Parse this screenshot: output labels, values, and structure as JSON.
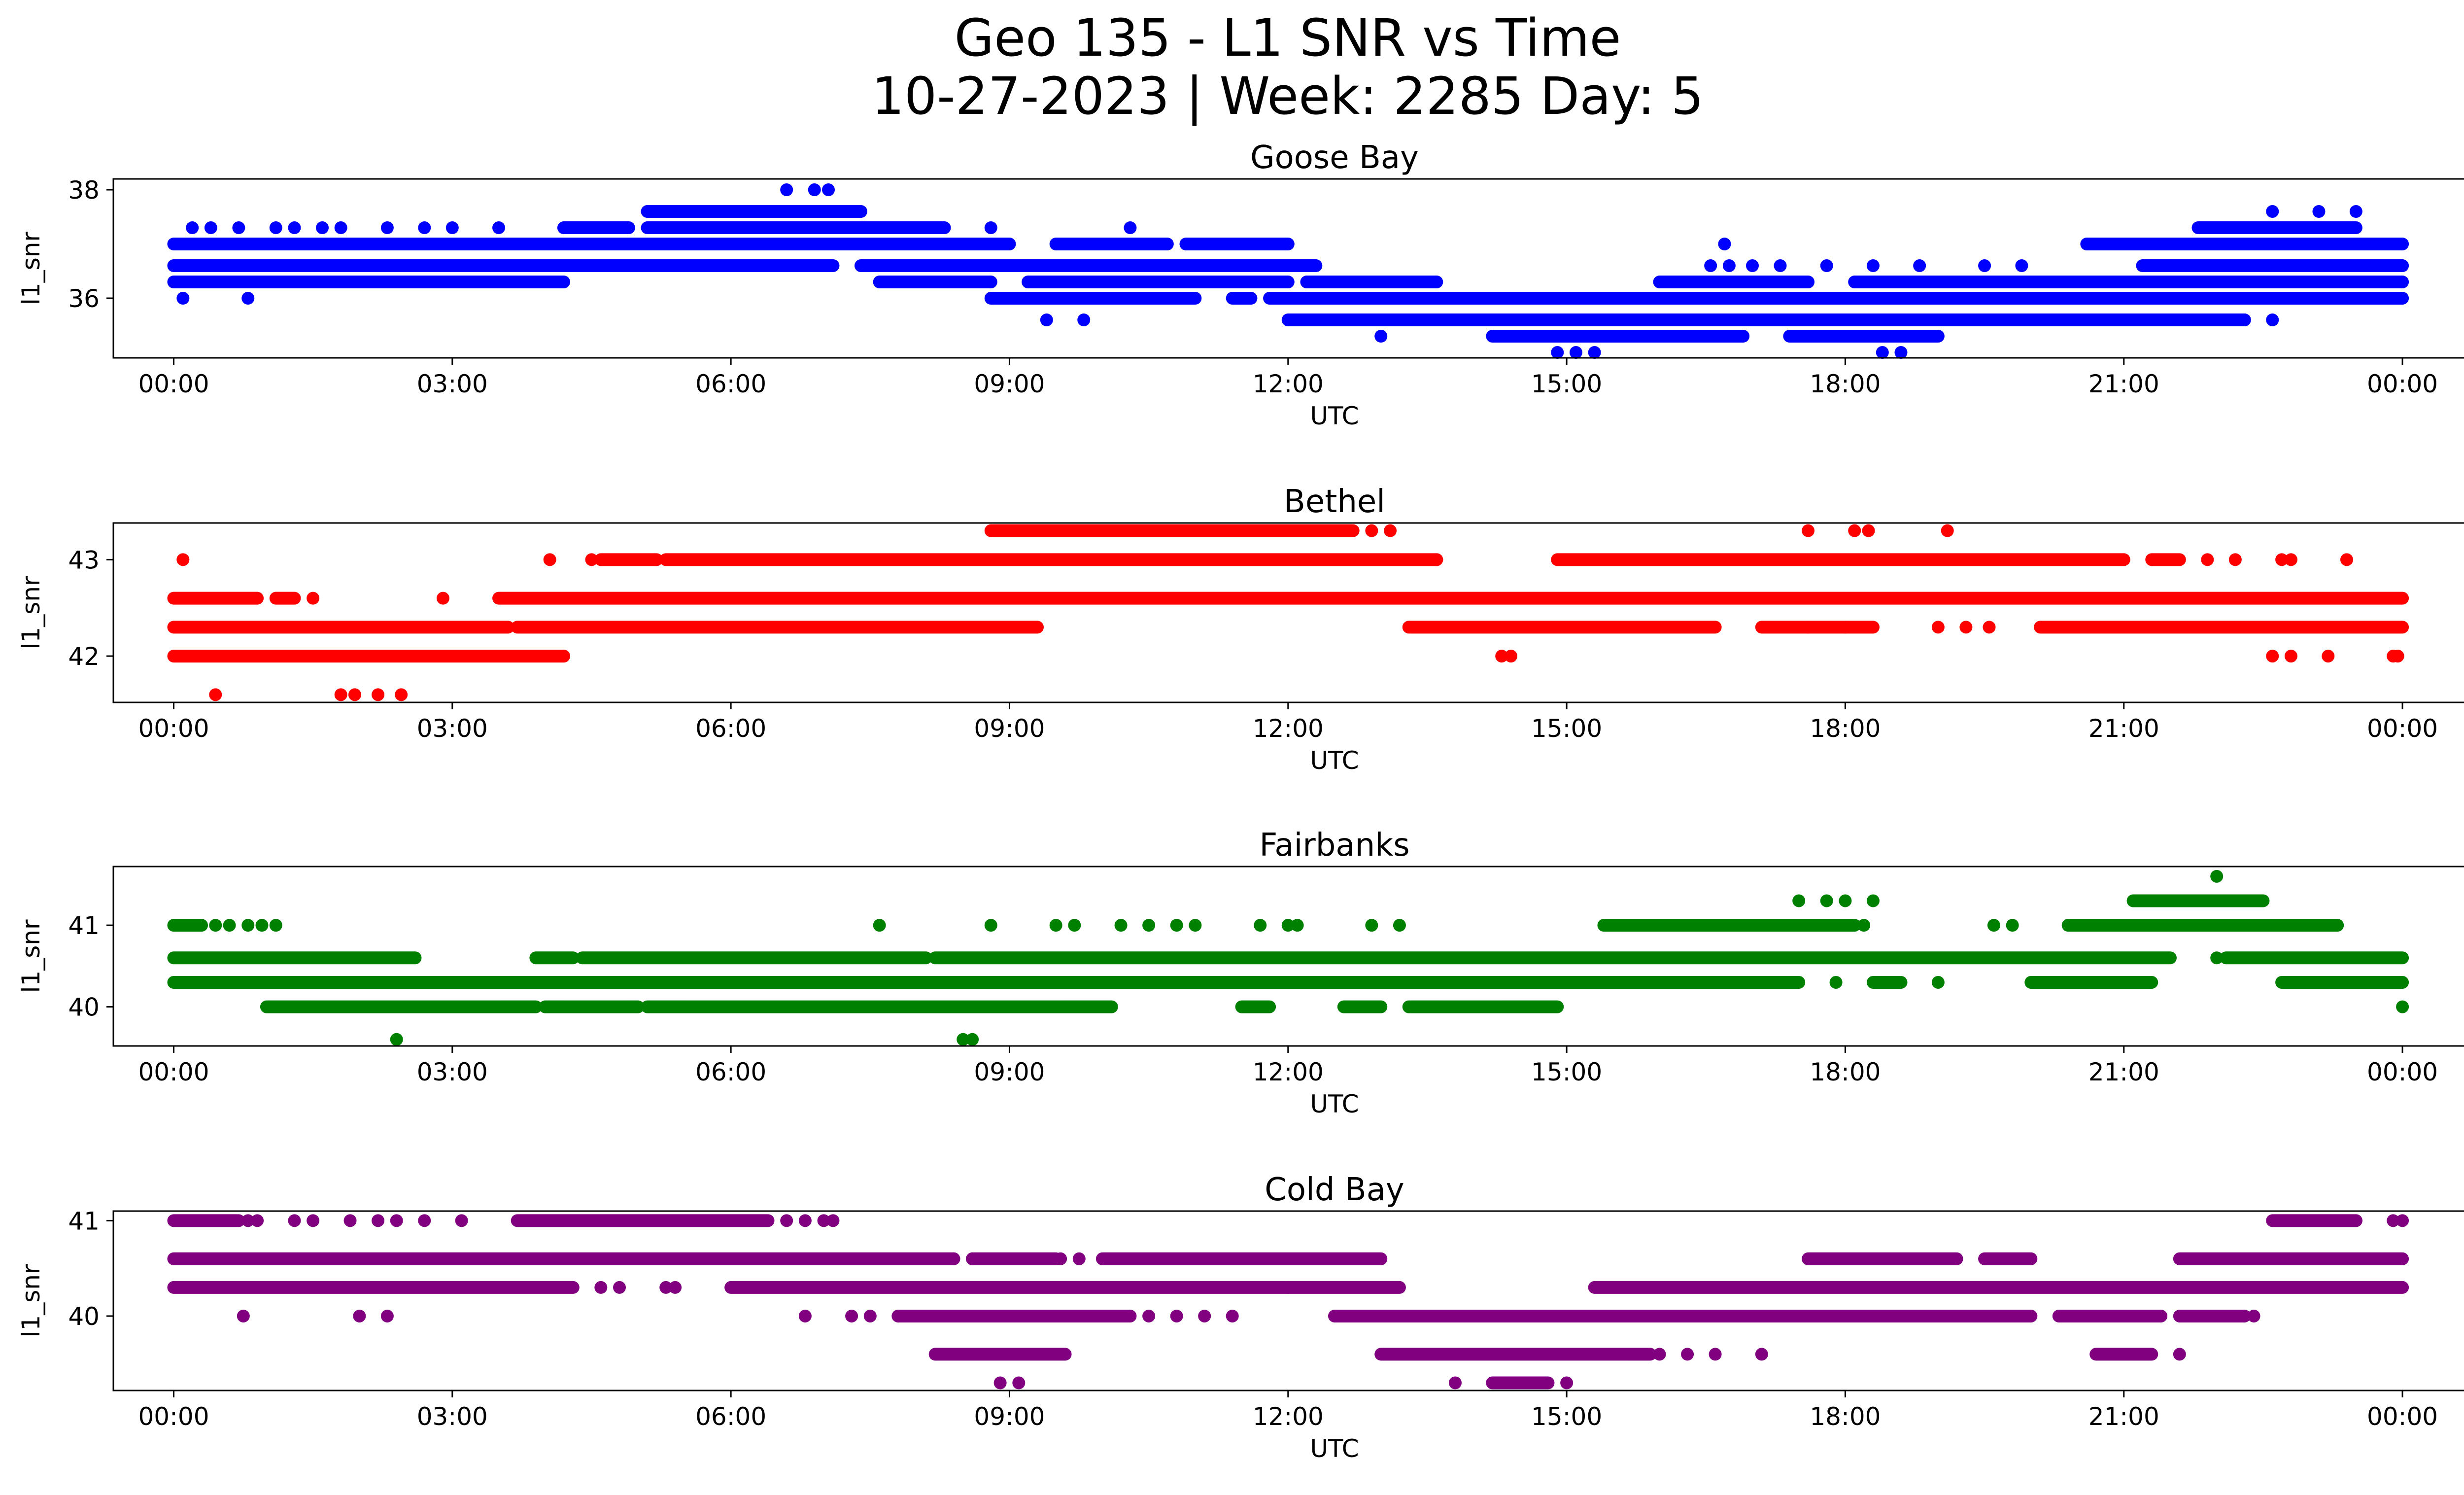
{
  "figure": {
    "title_line1": "Geo 135 - L1 SNR vs Time",
    "title_line2": "10-27-2023 | Week: 2285 Day: 5"
  },
  "chart_data": [
    {
      "type": "scatter",
      "title": "Goose Bay",
      "xlabel": "UTC",
      "ylabel": "l1_snr",
      "color": "#0000ff",
      "x_ticks": [
        "00:00",
        "03:00",
        "06:00",
        "09:00",
        "12:00",
        "15:00",
        "18:00",
        "21:00",
        "00:00"
      ],
      "xlim_hours": [
        -0.65,
        25.65
      ],
      "ylim": [
        34.9,
        38.2
      ],
      "y_ticks": [
        36,
        38
      ],
      "levels": [
        {
          "y": 37.0,
          "segments": [
            [
              0,
              9.0
            ],
            [
              9.5,
              10.7
            ],
            [
              10.9,
              12.0
            ],
            [
              20.6,
              24
            ]
          ]
        },
        {
          "y": 36.6,
          "segments": [
            [
              0,
              7.1
            ],
            [
              7.4,
              12.3
            ],
            [
              21.2,
              24
            ]
          ]
        },
        {
          "y": 36.3,
          "segments": [
            [
              0,
              4.2
            ],
            [
              7.6,
              8.8
            ],
            [
              9.2,
              12.0
            ],
            [
              12.2,
              13.6
            ],
            [
              16.0,
              17.6
            ],
            [
              18.1,
              24
            ]
          ]
        },
        {
          "y": 36.0,
          "segments": [
            [
              8.8,
              11.0
            ],
            [
              11.4,
              11.6
            ],
            [
              11.8,
              24
            ]
          ]
        },
        {
          "y": 35.6,
          "segments": [
            [
              12.0,
              22.3
            ]
          ]
        },
        {
          "y": 35.3,
          "segments": [
            [
              14.2,
              16.9
            ],
            [
              17.4,
              19.0
            ]
          ]
        },
        {
          "y": 37.3,
          "segments": [
            [
              4.2,
              4.9
            ],
            [
              5.1,
              8.3
            ],
            [
              21.8,
              23.5
            ]
          ]
        },
        {
          "y": 37.6,
          "segments": [
            [
              5.1,
              7.4
            ]
          ]
        }
      ],
      "points": [
        [
          0.1,
          36.0
        ],
        [
          0.8,
          36.0
        ],
        [
          1.6,
          36.3
        ],
        [
          0.2,
          37.3
        ],
        [
          0.4,
          37.3
        ],
        [
          0.7,
          37.3
        ],
        [
          1.1,
          37.3
        ],
        [
          1.3,
          37.3
        ],
        [
          1.6,
          37.3
        ],
        [
          1.8,
          37.3
        ],
        [
          2.3,
          37.3
        ],
        [
          2.7,
          37.3
        ],
        [
          3.0,
          37.3
        ],
        [
          3.5,
          37.3
        ],
        [
          4.4,
          37.3
        ],
        [
          4.8,
          37.3
        ],
        [
          6.6,
          38.0
        ],
        [
          6.9,
          38.0
        ],
        [
          7.05,
          38.0
        ],
        [
          6.4,
          36.6
        ],
        [
          8.8,
          37.3
        ],
        [
          9.4,
          35.6
        ],
        [
          9.8,
          35.6
        ],
        [
          10.3,
          37.3
        ],
        [
          13.0,
          35.3
        ],
        [
          14.9,
          35.0
        ],
        [
          15.1,
          35.0
        ],
        [
          15.3,
          35.0
        ],
        [
          18.4,
          35.0
        ],
        [
          18.6,
          35.0
        ],
        [
          16.7,
          37.0
        ],
        [
          16.55,
          36.6
        ],
        [
          16.75,
          36.6
        ],
        [
          17.0,
          36.6
        ],
        [
          17.3,
          36.6
        ],
        [
          17.8,
          36.6
        ],
        [
          18.3,
          36.6
        ],
        [
          18.8,
          36.6
        ],
        [
          19.5,
          36.6
        ],
        [
          19.9,
          36.6
        ],
        [
          21.0,
          37.0
        ],
        [
          22.3,
          35.6
        ],
        [
          22.6,
          35.6
        ],
        [
          22.6,
          37.6
        ],
        [
          23.1,
          37.6
        ],
        [
          23.5,
          37.6
        ],
        [
          23.6,
          36.0
        ]
      ]
    },
    {
      "type": "scatter",
      "title": "Bethel",
      "xlabel": "UTC",
      "ylabel": "l1_snr",
      "color": "#ff0000",
      "x_ticks": [
        "00:00",
        "03:00",
        "06:00",
        "09:00",
        "12:00",
        "15:00",
        "18:00",
        "21:00",
        "00:00"
      ],
      "xlim_hours": [
        -0.65,
        25.65
      ],
      "ylim": [
        41.52,
        43.38
      ],
      "y_ticks": [
        42,
        43
      ],
      "levels": [
        {
          "y": 42.6,
          "segments": [
            [
              0,
              0.9
            ],
            [
              1.1,
              1.3
            ],
            [
              3.5,
              24
            ]
          ]
        },
        {
          "y": 42.3,
          "segments": [
            [
              0,
              3.6
            ],
            [
              3.7,
              9.3
            ],
            [
              13.3,
              16.6
            ],
            [
              17.1,
              18.3
            ],
            [
              20.1,
              24
            ]
          ]
        },
        {
          "y": 42.0,
          "segments": [
            [
              0,
              4.2
            ]
          ]
        },
        {
          "y": 43.0,
          "segments": [
            [
              4.6,
              5.2
            ],
            [
              5.3,
              13.6
            ],
            [
              14.9,
              21.0
            ],
            [
              21.3,
              21.6
            ]
          ]
        },
        {
          "y": 43.3,
          "segments": [
            [
              8.8,
              12.7
            ]
          ]
        }
      ],
      "points": [
        [
          0.1,
          43.0
        ],
        [
          0.45,
          41.6
        ],
        [
          1.8,
          41.6
        ],
        [
          1.95,
          41.6
        ],
        [
          2.2,
          41.6
        ],
        [
          2.45,
          41.6
        ],
        [
          1.5,
          42.6
        ],
        [
          2.9,
          42.6
        ],
        [
          4.05,
          43.0
        ],
        [
          4.2,
          42.0
        ],
        [
          4.5,
          43.0
        ],
        [
          12.9,
          43.3
        ],
        [
          13.1,
          43.3
        ],
        [
          13.6,
          43.0
        ],
        [
          14.4,
          42.0
        ],
        [
          14.3,
          42.0
        ],
        [
          17.6,
          43.3
        ],
        [
          18.1,
          43.3
        ],
        [
          18.25,
          43.3
        ],
        [
          19.1,
          43.3
        ],
        [
          17.6,
          42.3
        ],
        [
          18.0,
          42.3
        ],
        [
          19.0,
          42.3
        ],
        [
          19.3,
          42.3
        ],
        [
          19.55,
          42.3
        ],
        [
          21.9,
          43.0
        ],
        [
          22.2,
          43.0
        ],
        [
          22.7,
          43.0
        ],
        [
          22.8,
          43.0
        ],
        [
          23.4,
          43.0
        ],
        [
          22.6,
          42.0
        ],
        [
          22.8,
          42.0
        ],
        [
          23.2,
          42.0
        ],
        [
          23.9,
          42.0
        ],
        [
          23.95,
          42.0
        ]
      ]
    },
    {
      "type": "scatter",
      "title": "Fairbanks",
      "xlabel": "UTC",
      "ylabel": "l1_snr",
      "color": "#008000",
      "x_ticks": [
        "00:00",
        "03:00",
        "06:00",
        "09:00",
        "12:00",
        "15:00",
        "18:00",
        "21:00",
        "00:00"
      ],
      "xlim_hours": [
        -0.65,
        25.65
      ],
      "ylim": [
        39.52,
        41.72
      ],
      "y_ticks": [
        40,
        41
      ],
      "levels": [
        {
          "y": 40.3,
          "segments": [
            [
              0,
              17.5
            ],
            [
              18.3,
              18.6
            ],
            [
              20.0,
              21.3
            ],
            [
              22.7,
              24
            ]
          ]
        },
        {
          "y": 40.6,
          "segments": [
            [
              0,
              2.6
            ],
            [
              3.9,
              4.3
            ],
            [
              4.4,
              8.1
            ],
            [
              8.2,
              21.5
            ],
            [
              22.1,
              24
            ]
          ]
        },
        {
          "y": 41.0,
          "segments": [
            [
              0,
              0.3
            ],
            [
              15.4,
              18.1
            ],
            [
              20.4,
              23.3
            ]
          ]
        },
        {
          "y": 40.0,
          "segments": [
            [
              1.0,
              3.9
            ],
            [
              4.0,
              5.0
            ],
            [
              5.1,
              10.1
            ],
            [
              11.5,
              11.8
            ],
            [
              12.6,
              13.0
            ],
            [
              13.3,
              14.9
            ]
          ]
        },
        {
          "y": 41.3,
          "segments": [
            [
              21.1,
              22.5
            ]
          ]
        }
      ],
      "points": [
        [
          0.45,
          41.0
        ],
        [
          0.6,
          41.0
        ],
        [
          0.8,
          41.0
        ],
        [
          0.95,
          41.0
        ],
        [
          1.1,
          41.0
        ],
        [
          2.4,
          39.6
        ],
        [
          8.5,
          39.6
        ],
        [
          8.6,
          39.6
        ],
        [
          7.6,
          41.0
        ],
        [
          8.8,
          41.0
        ],
        [
          9.5,
          41.0
        ],
        [
          9.7,
          41.0
        ],
        [
          10.2,
          41.0
        ],
        [
          10.5,
          41.0
        ],
        [
          10.8,
          41.0
        ],
        [
          11.0,
          41.0
        ],
        [
          11.7,
          41.0
        ],
        [
          12.0,
          41.0
        ],
        [
          12.1,
          41.0
        ],
        [
          12.9,
          41.0
        ],
        [
          13.2,
          41.0
        ],
        [
          17.5,
          41.3
        ],
        [
          17.8,
          41.3
        ],
        [
          18.0,
          41.3
        ],
        [
          18.3,
          41.3
        ],
        [
          18.2,
          41.0
        ],
        [
          19.6,
          41.0
        ],
        [
          19.8,
          41.0
        ],
        [
          17.9,
          40.3
        ],
        [
          19.0,
          40.3
        ],
        [
          22.0,
          41.6
        ],
        [
          22.0,
          40.6
        ],
        [
          24.0,
          40.0
        ]
      ]
    },
    {
      "type": "scatter",
      "title": "Cold Bay",
      "xlabel": "UTC",
      "ylabel": "l1_snr",
      "color": "#800080",
      "x_ticks": [
        "00:00",
        "03:00",
        "06:00",
        "09:00",
        "12:00",
        "15:00",
        "18:00",
        "21:00",
        "00:00"
      ],
      "xlim_hours": [
        -0.65,
        25.65
      ],
      "ylim": [
        39.22,
        41.1
      ],
      "y_ticks": [
        40,
        41
      ],
      "levels": [
        {
          "y": 40.6,
          "segments": [
            [
              0,
              8.4
            ],
            [
              8.6,
              9.5
            ],
            [
              10.0,
              13.0
            ],
            [
              17.6,
              19.2
            ],
            [
              19.5,
              20.0
            ],
            [
              21.6,
              24
            ]
          ]
        },
        {
          "y": 40.3,
          "segments": [
            [
              0,
              4.3
            ],
            [
              6.0,
              13.2
            ],
            [
              15.3,
              24
            ]
          ]
        },
        {
          "y": 40.0,
          "segments": [
            [
              7.8,
              10.3
            ],
            [
              12.5,
              20.0
            ],
            [
              20.3,
              21.4
            ],
            [
              21.6,
              22.3
            ]
          ]
        },
        {
          "y": 41.0,
          "segments": [
            [
              0,
              0.7
            ],
            [
              3.7,
              6.4
            ],
            [
              22.6,
              23.5
            ]
          ]
        },
        {
          "y": 39.6,
          "segments": [
            [
              8.2,
              9.6
            ],
            [
              13.0,
              15.9
            ],
            [
              20.7,
              21.3
            ]
          ]
        },
        {
          "y": 39.3,
          "segments": [
            [
              14.2,
              14.8
            ]
          ]
        }
      ],
      "points": [
        [
          0.8,
          41.0
        ],
        [
          0.9,
          41.0
        ],
        [
          1.3,
          41.0
        ],
        [
          1.5,
          41.0
        ],
        [
          1.9,
          41.0
        ],
        [
          2.2,
          41.0
        ],
        [
          2.4,
          41.0
        ],
        [
          2.7,
          41.0
        ],
        [
          3.1,
          41.0
        ],
        [
          6.6,
          41.0
        ],
        [
          6.8,
          41.0
        ],
        [
          7.0,
          41.0
        ],
        [
          7.1,
          41.0
        ],
        [
          0.75,
          40.0
        ],
        [
          2.0,
          40.0
        ],
        [
          2.3,
          40.0
        ],
        [
          4.6,
          40.3
        ],
        [
          4.8,
          40.3
        ],
        [
          5.3,
          40.3
        ],
        [
          5.4,
          40.3
        ],
        [
          6.8,
          40.0
        ],
        [
          7.3,
          40.0
        ],
        [
          7.5,
          40.0
        ],
        [
          8.4,
          40.6
        ],
        [
          8.6,
          40.6
        ],
        [
          9.55,
          40.6
        ],
        [
          9.75,
          40.6
        ],
        [
          10.5,
          40.0
        ],
        [
          10.8,
          40.0
        ],
        [
          11.1,
          40.0
        ],
        [
          11.4,
          40.0
        ],
        [
          12.0,
          40.3
        ],
        [
          8.9,
          39.3
        ],
        [
          9.1,
          39.3
        ],
        [
          13.8,
          39.3
        ],
        [
          16.0,
          39.6
        ],
        [
          16.3,
          39.6
        ],
        [
          16.6,
          39.6
        ],
        [
          17.1,
          39.6
        ],
        [
          15.0,
          39.3
        ],
        [
          21.6,
          39.6
        ],
        [
          22.4,
          40.0
        ],
        [
          23.5,
          41.0
        ],
        [
          23.9,
          41.0
        ],
        [
          24.0,
          41.0
        ]
      ]
    }
  ]
}
